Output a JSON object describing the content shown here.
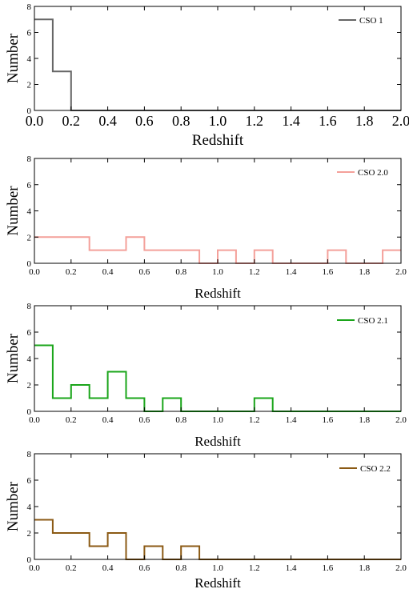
{
  "chart_data": [
    {
      "type": "line",
      "step": "histogram",
      "xlabel": "Redshift",
      "ylabel": "Number",
      "xlim": [
        0.0,
        2.0
      ],
      "ylim": [
        0,
        8
      ],
      "x_ticks": [
        "0.0",
        "0.2",
        "0.4",
        "0.6",
        "0.8",
        "1.0",
        "1.2",
        "1.4",
        "1.6",
        "1.8",
        "2.0"
      ],
      "y_ticks": [
        "0",
        "2",
        "4",
        "6",
        "8"
      ],
      "bin_edges": [
        0.0,
        0.1,
        0.2,
        0.3,
        0.4,
        0.5,
        0.6,
        0.7,
        0.8,
        0.9,
        1.0,
        1.1,
        1.2,
        1.3,
        1.4,
        1.5,
        1.6,
        1.7,
        1.8,
        1.9,
        2.0
      ],
      "series": [
        {
          "name": "CSO 1",
          "color": "#666666",
          "values": [
            7,
            3,
            0,
            0,
            0,
            0,
            0,
            0,
            0,
            0,
            0,
            0,
            0,
            0,
            0,
            0,
            0,
            0,
            0,
            0
          ]
        }
      ],
      "legend_position": "top-right",
      "grid": false,
      "style": "large"
    },
    {
      "type": "line",
      "step": "histogram",
      "xlabel": "Redshift",
      "ylabel": "Number",
      "xlim": [
        0.0,
        2.0
      ],
      "ylim": [
        0,
        8
      ],
      "x_ticks": [
        "0.0",
        "0.2",
        "0.4",
        "0.6",
        "0.8",
        "1.0",
        "1.2",
        "1.4",
        "1.6",
        "1.8",
        "2.0"
      ],
      "y_ticks": [
        "0",
        "2",
        "4",
        "6",
        "8"
      ],
      "bin_edges": [
        0.0,
        0.1,
        0.2,
        0.3,
        0.4,
        0.5,
        0.6,
        0.7,
        0.8,
        0.9,
        1.0,
        1.1,
        1.2,
        1.3,
        1.4,
        1.5,
        1.6,
        1.7,
        1.8,
        1.9,
        2.0
      ],
      "series": [
        {
          "name": "CSO 2.0",
          "color": "#f4a09a",
          "values": [
            2,
            2,
            2,
            1,
            1,
            2,
            1,
            1,
            1,
            0,
            1,
            0,
            1,
            0,
            0,
            0,
            1,
            0,
            0,
            1
          ]
        }
      ],
      "legend_position": "top-right",
      "grid": false,
      "style": "small"
    },
    {
      "type": "line",
      "step": "histogram",
      "xlabel": "Redshift",
      "ylabel": "Number",
      "xlim": [
        0.0,
        2.0
      ],
      "ylim": [
        0,
        8
      ],
      "x_ticks": [
        "0.0",
        "0.2",
        "0.4",
        "0.6",
        "0.8",
        "1.0",
        "1.2",
        "1.4",
        "1.6",
        "1.8",
        "2.0"
      ],
      "y_ticks": [
        "0",
        "2",
        "4",
        "6",
        "8"
      ],
      "bin_edges": [
        0.0,
        0.1,
        0.2,
        0.3,
        0.4,
        0.5,
        0.6,
        0.7,
        0.8,
        0.9,
        1.0,
        1.1,
        1.2,
        1.3,
        1.4,
        1.5,
        1.6,
        1.7,
        1.8,
        1.9,
        2.0
      ],
      "series": [
        {
          "name": "CSO 2.1",
          "color": "#1aa51a",
          "values": [
            5,
            1,
            2,
            1,
            3,
            1,
            0,
            1,
            0,
            0,
            0,
            0,
            1,
            0,
            0,
            0,
            0,
            0,
            0,
            0
          ]
        }
      ],
      "legend_position": "top-right",
      "grid": false,
      "style": "small"
    },
    {
      "type": "line",
      "step": "histogram",
      "xlabel": "Redshift",
      "ylabel": "Number",
      "xlim": [
        0.0,
        2.0
      ],
      "ylim": [
        0,
        8
      ],
      "x_ticks": [
        "0.0",
        "0.2",
        "0.4",
        "0.6",
        "0.8",
        "1.0",
        "1.2",
        "1.4",
        "1.6",
        "1.8",
        "2.0"
      ],
      "y_ticks": [
        "0",
        "2",
        "4",
        "6",
        "8"
      ],
      "bin_edges": [
        0.0,
        0.1,
        0.2,
        0.3,
        0.4,
        0.5,
        0.6,
        0.7,
        0.8,
        0.9,
        1.0,
        1.1,
        1.2,
        1.3,
        1.4,
        1.5,
        1.6,
        1.7,
        1.8,
        1.9,
        2.0
      ],
      "series": [
        {
          "name": "CSO 2.2",
          "color": "#8b5a14",
          "values": [
            3,
            2,
            2,
            1,
            2,
            0,
            1,
            0,
            1,
            0,
            0,
            0,
            0,
            0,
            0,
            0,
            0,
            0,
            0,
            0
          ]
        }
      ],
      "legend_position": "top-right",
      "grid": false,
      "style": "small"
    }
  ]
}
